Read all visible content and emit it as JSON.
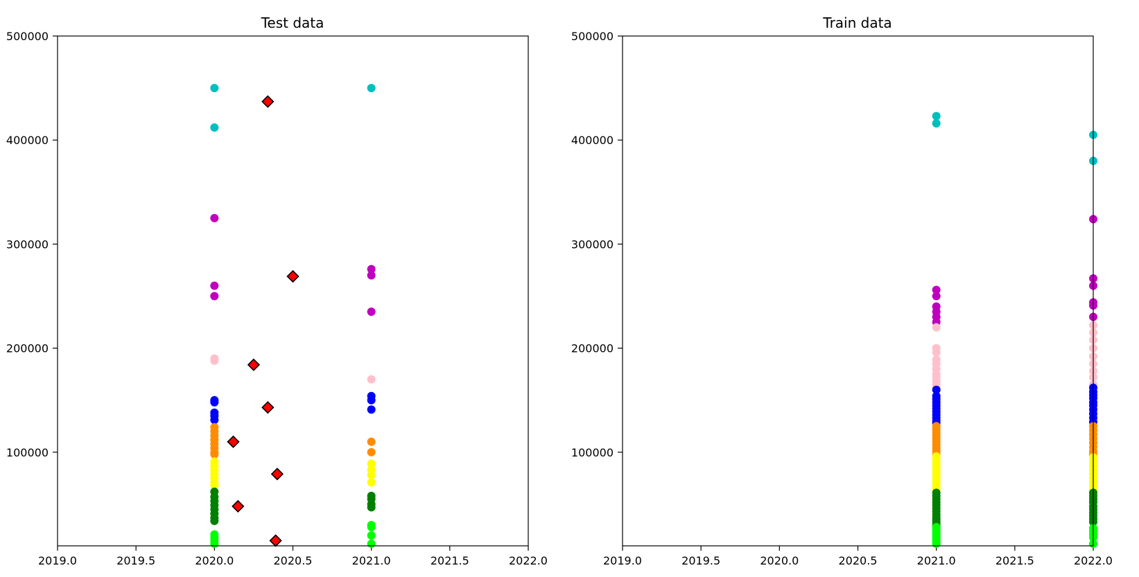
{
  "chart_data": [
    {
      "type": "scatter",
      "title": "Test data",
      "xlabel": "",
      "ylabel": "",
      "xlim": [
        2019.0,
        2022.0
      ],
      "ylim": [
        10000,
        500000
      ],
      "x_ticks": [
        "2019.0",
        "2019.5",
        "2020.0",
        "2020.5",
        "2021.0",
        "2021.5",
        "2022.0"
      ],
      "y_ticks": [
        "100000",
        "200000",
        "300000",
        "400000",
        "500000"
      ],
      "grid": false,
      "series": [
        {
          "color": "#00bfbf",
          "marker": "circle",
          "x": [
            2020,
            2020,
            2021
          ],
          "y": [
            450000,
            412000,
            450000
          ]
        },
        {
          "color": "#bf00bf",
          "marker": "circle",
          "x": [
            2020,
            2020,
            2020,
            2021,
            2021,
            2021
          ],
          "y": [
            325000,
            260000,
            250000,
            276000,
            270000,
            235000
          ]
        },
        {
          "color": "#ffc0cb",
          "marker": "circle",
          "x": [
            2020,
            2020,
            2021
          ],
          "y": [
            190000,
            188000,
            170000
          ]
        },
        {
          "color": "#0000ff",
          "marker": "circle",
          "x": [
            2020,
            2020,
            2020,
            2020,
            2020,
            2021,
            2021,
            2021
          ],
          "y": [
            150000,
            148000,
            138000,
            135000,
            131000,
            154000,
            150000,
            141000
          ]
        },
        {
          "color": "#ff8c00",
          "marker": "circle",
          "x": [
            2020,
            2020,
            2020,
            2020,
            2020,
            2020,
            2020,
            2020,
            2021,
            2021
          ],
          "y": [
            124000,
            120000,
            116000,
            112000,
            108000,
            104000,
            100000,
            98000,
            110000,
            100000
          ]
        },
        {
          "color": "#ffff00",
          "marker": "circle",
          "x": [
            2020,
            2020,
            2020,
            2020,
            2020,
            2020,
            2020,
            2021,
            2021,
            2021,
            2021
          ],
          "y": [
            91000,
            87000,
            83000,
            79000,
            75000,
            71000,
            68000,
            89000,
            83000,
            78000,
            71000
          ]
        },
        {
          "color": "#008000",
          "marker": "circle",
          "x": [
            2020,
            2020,
            2020,
            2020,
            2020,
            2020,
            2020,
            2020,
            2021,
            2021,
            2021,
            2021
          ],
          "y": [
            62000,
            57000,
            53000,
            49000,
            45000,
            41000,
            37000,
            34000,
            58000,
            55000,
            50000,
            47000
          ]
        },
        {
          "color": "#00ff00",
          "marker": "circle",
          "x": [
            2020,
            2020,
            2020,
            2020,
            2021,
            2021,
            2021,
            2021
          ],
          "y": [
            21000,
            18000,
            15000,
            12000,
            30000,
            28000,
            20000,
            12000
          ]
        },
        {
          "color": "#ff0000",
          "marker": "diamond",
          "edgecolor": "#000000",
          "x": [
            2020.34,
            2020.5,
            2020.25,
            2020.34,
            2020.12,
            2020.4,
            2020.15,
            2020.39
          ],
          "y": [
            437000,
            269000,
            184000,
            143000,
            110000,
            79000,
            48000,
            15000
          ]
        }
      ]
    },
    {
      "type": "scatter",
      "title": "Train data",
      "xlabel": "",
      "ylabel": "",
      "xlim": [
        2019.0,
        2022.0
      ],
      "ylim": [
        10000,
        500000
      ],
      "x_ticks": [
        "2019.0",
        "2019.5",
        "2020.0",
        "2020.5",
        "2021.0",
        "2021.5",
        "2022.0"
      ],
      "y_ticks": [
        "100000",
        "200000",
        "300000",
        "400000",
        "500000"
      ],
      "grid": false,
      "series": [
        {
          "color": "#00bfbf",
          "marker": "circle",
          "x": [
            2021,
            2021,
            2022,
            2022
          ],
          "y": [
            423000,
            416000,
            405000,
            380000
          ]
        },
        {
          "color": "#bf00bf",
          "marker": "circle",
          "x": [
            2021,
            2021,
            2021,
            2021,
            2021,
            2021,
            2022,
            2022,
            2022,
            2022,
            2022,
            2022
          ],
          "y": [
            256000,
            250000,
            240000,
            235000,
            230000,
            225000,
            324000,
            267000,
            260000,
            244000,
            241000,
            230000
          ]
        },
        {
          "color": "#ffc0cb",
          "marker": "circle",
          "x": [
            2021,
            2021,
            2021,
            2021,
            2021,
            2021,
            2021,
            2021,
            2021,
            2021,
            2021,
            2022,
            2022,
            2022,
            2022,
            2022,
            2022,
            2022,
            2022,
            2022
          ],
          "y": [
            220000,
            200000,
            196000,
            189000,
            185000,
            180000,
            175000,
            172000,
            168000,
            165000,
            162000,
            222000,
            215000,
            208000,
            200000,
            192000,
            185000,
            178000,
            172000,
            165000
          ]
        },
        {
          "color": "#0000ff",
          "marker": "circle",
          "x": [
            2021,
            2021,
            2021,
            2021,
            2021,
            2021,
            2021,
            2021,
            2021,
            2021,
            2021,
            2022,
            2022,
            2022,
            2022,
            2022,
            2022,
            2022,
            2022,
            2022,
            2022
          ],
          "y": [
            160000,
            154000,
            151000,
            148000,
            145000,
            142000,
            139000,
            136000,
            133000,
            130000,
            128000,
            162000,
            158000,
            155000,
            152000,
            148000,
            145000,
            141000,
            137000,
            133000,
            129000
          ]
        },
        {
          "color": "#ff8c00",
          "marker": "circle",
          "x": [
            2021,
            2021,
            2021,
            2021,
            2021,
            2021,
            2021,
            2021,
            2021,
            2021,
            2022,
            2022,
            2022,
            2022,
            2022,
            2022,
            2022,
            2022
          ],
          "y": [
            125000,
            122000,
            119000,
            116000,
            113000,
            110000,
            107000,
            104000,
            101000,
            98000,
            125000,
            121000,
            117000,
            113000,
            109000,
            105000,
            101000,
            98000
          ]
        },
        {
          "color": "#ffff00",
          "marker": "circle",
          "x": [
            2021,
            2021,
            2021,
            2021,
            2021,
            2021,
            2021,
            2021,
            2021,
            2021,
            2021,
            2021,
            2021,
            2022,
            2022,
            2022,
            2022,
            2022,
            2022,
            2022,
            2022,
            2022
          ],
          "y": [
            96000,
            93000,
            90000,
            87000,
            84000,
            81000,
            78000,
            75000,
            72000,
            69000,
            66000,
            64000,
            62000,
            95000,
            91000,
            87000,
            83000,
            79000,
            75000,
            71000,
            67000,
            63000
          ]
        },
        {
          "color": "#008000",
          "marker": "circle",
          "x": [
            2021,
            2021,
            2021,
            2021,
            2021,
            2021,
            2021,
            2021,
            2021,
            2021,
            2021,
            2021,
            2021,
            2022,
            2022,
            2022,
            2022,
            2022,
            2022,
            2022,
            2022,
            2022,
            2022
          ],
          "y": [
            61000,
            58000,
            55000,
            52000,
            49000,
            46000,
            43000,
            40000,
            37000,
            35000,
            33000,
            31000,
            29000,
            61000,
            58000,
            55000,
            52000,
            48000,
            45000,
            42000,
            39000,
            36000,
            33000
          ]
        },
        {
          "color": "#00ff00",
          "marker": "circle",
          "x": [
            2021,
            2021,
            2021,
            2021,
            2021,
            2021,
            2021,
            2021,
            2021,
            2022,
            2022,
            2022,
            2022,
            2022
          ],
          "y": [
            28000,
            26000,
            24000,
            22000,
            20000,
            18000,
            16000,
            14000,
            12000,
            27000,
            24000,
            21000,
            18000,
            12000
          ]
        }
      ]
    }
  ]
}
